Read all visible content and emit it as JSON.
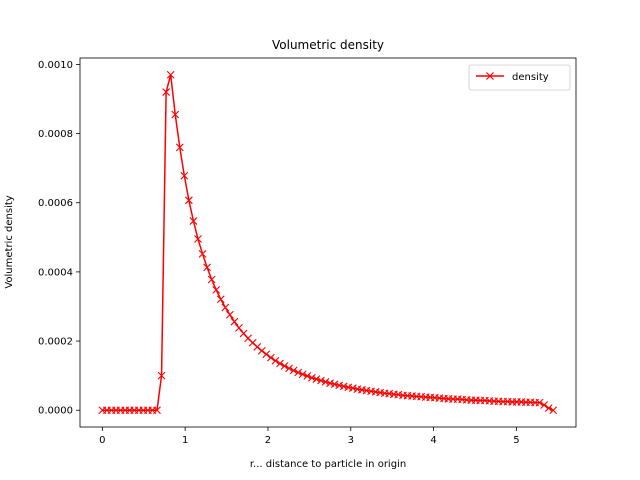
{
  "chart_data": {
    "type": "line",
    "title": "Volumetric density",
    "xlabel": "r... distance to particle in origin",
    "ylabel": "Volumetric density",
    "xlim": [
      -0.27,
      5.72
    ],
    "ylim": [
      -4.85e-05,
      0.0010185
    ],
    "xticks": [
      0,
      1,
      2,
      3,
      4,
      5
    ],
    "xtick_labels": [
      "0",
      "1",
      "2",
      "3",
      "4",
      "5"
    ],
    "yticks": [
      0,
      0.0002,
      0.0004,
      0.0006,
      0.0008,
      0.001
    ],
    "ytick_labels": [
      "0.0000",
      "0.0002",
      "0.0004",
      "0.0006",
      "0.0008",
      "0.0010"
    ],
    "grid": false,
    "legend": {
      "position": "top-right",
      "entries": [
        "density"
      ]
    },
    "series": [
      {
        "name": "density",
        "color": "#ff0000",
        "marker": "x",
        "x": [
          0.0,
          0.055,
          0.11,
          0.165,
          0.22,
          0.275,
          0.33,
          0.385,
          0.44,
          0.495,
          0.55,
          0.605,
          0.66,
          0.715,
          0.77,
          0.825,
          0.88,
          0.935,
          0.99,
          1.045,
          1.1,
          1.155,
          1.21,
          1.265,
          1.32,
          1.375,
          1.43,
          1.485,
          1.54,
          1.595,
          1.65,
          1.705,
          1.76,
          1.815,
          1.87,
          1.925,
          1.98,
          2.035,
          2.09,
          2.145,
          2.2,
          2.255,
          2.31,
          2.365,
          2.42,
          2.475,
          2.53,
          2.585,
          2.64,
          2.695,
          2.75,
          2.805,
          2.86,
          2.915,
          2.97,
          3.025,
          3.08,
          3.135,
          3.19,
          3.245,
          3.3,
          3.355,
          3.41,
          3.465,
          3.52,
          3.575,
          3.63,
          3.685,
          3.74,
          3.795,
          3.85,
          3.905,
          3.96,
          4.015,
          4.07,
          4.125,
          4.18,
          4.235,
          4.29,
          4.345,
          4.4,
          4.455,
          4.51,
          4.565,
          4.62,
          4.675,
          4.73,
          4.785,
          4.84,
          4.895,
          4.95,
          5.005,
          5.06,
          5.115,
          5.17,
          5.225,
          5.28,
          5.335,
          5.39,
          5.445
        ],
        "y": [
          0,
          0,
          0,
          0,
          0,
          0,
          0,
          0,
          0,
          0,
          0,
          0,
          0,
          0.0001,
          0.00092,
          0.00097,
          0.000855,
          0.00076,
          0.000678,
          0.000607,
          0.000547,
          0.000495,
          0.000452,
          0.000413,
          0.000378,
          0.000348,
          0.000321,
          0.000297,
          0.000276,
          0.000256,
          0.000238,
          0.000222,
          0.000208,
          0.000195,
          0.000183,
          0.000172,
          0.000162,
          0.000152,
          0.000143,
          0.000135,
          0.000128,
          0.000121,
          0.000115,
          0.000109,
          0.000104,
          9.9e-05,
          9.4e-05,
          9e-05,
          8.6e-05,
          8.2e-05,
          7.8e-05,
          7.5e-05,
          7.2e-05,
          6.9e-05,
          6.6e-05,
          6.4e-05,
          6.1e-05,
          5.9e-05,
          5.7e-05,
          5.5e-05,
          5.3e-05,
          5.1e-05,
          4.9e-05,
          4.8e-05,
          4.6e-05,
          4.5e-05,
          4.3e-05,
          4.2e-05,
          4.1e-05,
          4e-05,
          3.9e-05,
          3.8e-05,
          3.7e-05,
          3.6e-05,
          3.5e-05,
          3.4e-05,
          3.3e-05,
          3.2e-05,
          3.2e-05,
          3.1e-05,
          3e-05,
          2.9e-05,
          2.9e-05,
          2.8e-05,
          2.8e-05,
          2.7e-05,
          2.6e-05,
          2.6e-05,
          2.5e-05,
          2.5e-05,
          2.4e-05,
          2.4e-05,
          2.4e-05,
          2.3e-05,
          2.3e-05,
          2.2e-05,
          2.2e-05,
          1.5e-05,
          6e-06,
          0.0
        ]
      }
    ]
  }
}
